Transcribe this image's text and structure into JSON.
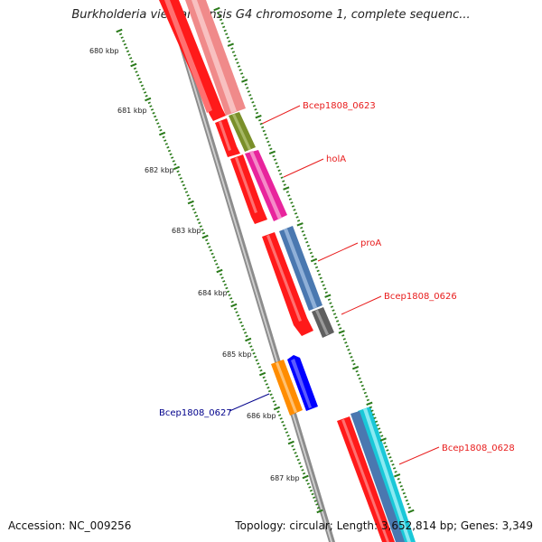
{
  "title": "Burkholderia vietnamiensis G4 chromosome 1, complete sequenc...",
  "footer": {
    "accession": "Accession: NC_009256",
    "info": "Topology: circular; Length: 3,652,814 bp; Genes: 3,349"
  },
  "ruler": {
    "labels": [
      "680 kbp",
      "681 kbp",
      "682 kbp",
      "683 kbp",
      "684 kbp",
      "685 kbp",
      "686 kbp",
      "687 kbp"
    ]
  },
  "genes": [
    {
      "name": "Bcep1808_0623",
      "color": "#e81c1c"
    },
    {
      "name": "holA",
      "color": "#e81c1c"
    },
    {
      "name": "proA",
      "color": "#e81c1c"
    },
    {
      "name": "Bcep1808_0626",
      "color": "#e81c1c"
    },
    {
      "name": "Bcep1808_0627",
      "color": "#00008b"
    },
    {
      "name": "Bcep1808_0628",
      "color": "#e81c1c"
    }
  ],
  "colors": {
    "forward_strand": "#ff1a1a",
    "reverse_strand": "#0000ff",
    "tick": "#2a7a1a"
  }
}
